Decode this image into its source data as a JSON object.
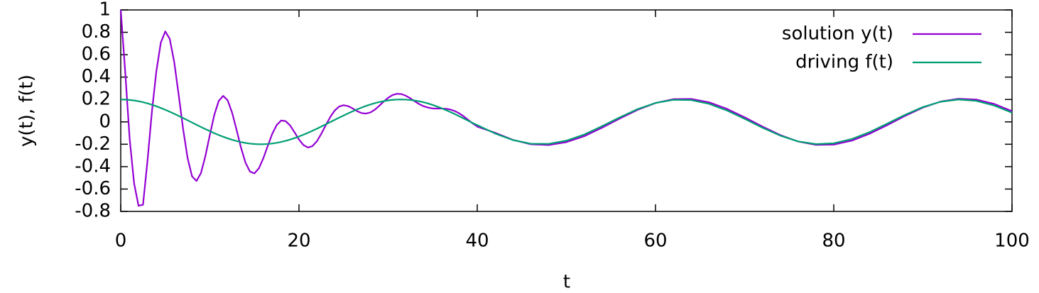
{
  "chart_data": {
    "type": "line",
    "xlabel": "t",
    "ylabel": "y(t),  f(t)",
    "x": [
      0,
      0.5,
      1,
      1.5,
      2,
      2.5,
      3,
      3.5,
      4,
      4.5,
      5,
      5.5,
      6,
      6.5,
      7,
      7.5,
      8,
      8.5,
      9,
      9.5,
      10,
      10.5,
      11,
      11.5,
      12,
      12.5,
      13,
      13.5,
      14,
      14.5,
      15,
      15.5,
      16,
      16.5,
      17,
      17.5,
      18,
      18.5,
      19,
      19.5,
      20,
      20.5,
      21,
      21.5,
      22,
      22.5,
      23,
      23.5,
      24,
      24.5,
      25,
      25.5,
      26,
      26.5,
      27,
      27.5,
      28,
      28.5,
      29,
      29.5,
      30,
      30.5,
      31,
      31.5,
      32,
      32.5,
      33,
      33.5,
      34,
      34.5,
      35,
      35.5,
      36,
      36.5,
      37,
      37.5,
      38,
      38.5,
      39,
      39.5,
      40,
      42,
      44,
      46,
      48,
      50,
      52,
      54,
      56,
      58,
      60,
      62,
      64,
      66,
      68,
      70,
      72,
      74,
      76,
      78,
      80,
      82,
      84,
      86,
      88,
      90,
      92,
      94,
      96,
      98,
      100
    ],
    "series": [
      {
        "name": "solution y(t)",
        "color": "#9400d3",
        "values": [
          1,
          0.45,
          -0.15,
          -0.55,
          -0.75,
          -0.74,
          -0.35,
          0.093,
          0.454,
          0.709,
          0.808,
          0.741,
          0.535,
          0.243,
          -0.064,
          -0.323,
          -0.486,
          -0.528,
          -0.458,
          -0.305,
          -0.115,
          0.063,
          0.188,
          0.232,
          0.192,
          0.081,
          -0.072,
          -0.232,
          -0.365,
          -0.444,
          -0.46,
          -0.415,
          -0.325,
          -0.214,
          -0.107,
          -0.028,
          0.012,
          0.007,
          -0.032,
          -0.093,
          -0.158,
          -0.207,
          -0.229,
          -0.217,
          -0.174,
          -0.107,
          -0.031,
          0.042,
          0.101,
          0.137,
          0.149,
          0.141,
          0.121,
          0.097,
          0.079,
          0.074,
          0.084,
          0.108,
          0.143,
          0.181,
          0.215,
          0.24,
          0.251,
          0.248,
          0.233,
          0.21,
          0.183,
          0.158,
          0.139,
          0.127,
          0.12,
          0.119,
          0.119,
          0.117,
          0.11,
          0.096,
          0.075,
          0.048,
          0.017,
          -0.015,
          -0.042,
          -0.0972,
          -0.1611,
          -0.1997,
          -0.2066,
          -0.1813,
          -0.128,
          -0.0525,
          0.03,
          0.108,
          0.1686,
          0.2028,
          0.2049,
          0.1747,
          0.117,
          0.0407,
          -0.0419,
          -0.1179,
          -0.1756,
          -0.2052,
          -0.2026,
          -0.1682,
          -0.1068,
          -0.029,
          0.0536,
          0.1279,
          0.1816,
          0.2066,
          0.1993,
          0.1604,
          0.096
        ]
      },
      {
        "name": "driving f(t)",
        "color": "#009e73",
        "values": [
          0.2,
          0.199,
          0.196,
          0.1911,
          0.1842,
          0.1755,
          0.1651,
          0.153,
          0.1393,
          0.1243,
          0.1081,
          0.0907,
          0.0725,
          0.0535,
          0.034,
          0.0141,
          -0.0058,
          -0.0258,
          -0.0454,
          -0.0646,
          -0.0832,
          -0.101,
          -0.1177,
          -0.1333,
          -0.1475,
          -0.1602,
          -0.1714,
          -0.1808,
          -0.1884,
          -0.1942,
          -0.198,
          -0.1998,
          -0.1997,
          -0.1975,
          -0.1933,
          -0.1873,
          -0.1792,
          -0.1696,
          -0.1582,
          -0.1452,
          -0.1307,
          -0.1149,
          -0.098,
          -0.0802,
          -0.0614,
          -0.0421,
          -0.0222,
          -0.0025,
          0.0175,
          0.0373,
          0.0567,
          0.0757,
          0.0937,
          0.1108,
          0.1269,
          0.1417,
          0.1551,
          0.1669,
          0.177,
          0.1854,
          0.192,
          0.1967,
          0.1994,
          0.2,
          0.1987,
          0.1955,
          0.1904,
          0.1834,
          0.1746,
          0.164,
          0.1508,
          0.137,
          0.1217,
          0.105,
          0.0875,
          0.069,
          0.0493,
          0.0296,
          0.0093,
          -0.0111,
          -0.0291,
          -0.1039,
          -0.1622,
          -0.195,
          -0.1968,
          -0.1678,
          -0.1133,
          -0.0387,
          0.0406,
          0.1139,
          0.1688,
          0.1971,
          0.1946,
          0.1612,
          0.1023,
          0.0273,
          -0.052,
          -0.123,
          -0.1747,
          -0.1988,
          -0.1915,
          -0.1542,
          -0.0922,
          -0.0159,
          0.0629,
          0.1321,
          0.18,
          0.1997,
          0.1878,
          0.1463,
          0.0816
        ]
      }
    ],
    "xlim": [
      0,
      100
    ],
    "xticks": [
      0,
      20,
      40,
      60,
      80,
      100
    ],
    "ylim": [
      -0.8,
      1
    ],
    "yticks": [
      -0.8,
      -0.6,
      -0.4,
      -0.2,
      0,
      0.2,
      0.4,
      0.6,
      0.8,
      1
    ],
    "legend": "top-right"
  }
}
